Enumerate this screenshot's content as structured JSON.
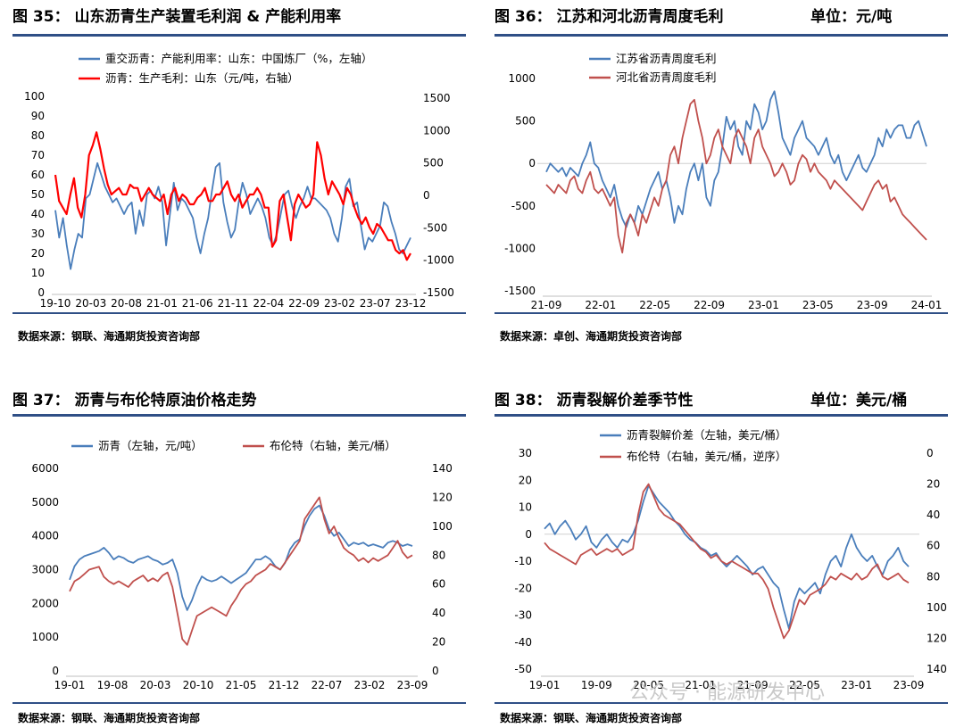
{
  "colors": {
    "blue": "#4a7ebb",
    "red": "#c0504d",
    "red_bright": "#ff0000",
    "rule": "#2f4f86",
    "gridline": "#d9d9d9"
  },
  "watermark": "公众号 · 能源研发中心",
  "charts": [
    {
      "title": "图 35：   山东沥青生产装置毛利润 & 产能利用率",
      "unit": "",
      "source": "数据来源：钢联、海通期货投资咨询部",
      "chart_data": {
        "type": "line",
        "legend_position": "top",
        "x_ticks": [
          "19-10",
          "20-03",
          "20-08",
          "21-01",
          "21-06",
          "21-11",
          "22-04",
          "22-09",
          "23-02",
          "23-07",
          "23-12"
        ],
        "yleft_ticks": [
          "100",
          "90",
          "80",
          "70",
          "60",
          "50",
          "40",
          "30",
          "20",
          "10",
          "0"
        ],
        "yleft_range": [
          0,
          100
        ],
        "yright_ticks": [
          "1500",
          "1000",
          "500",
          "0",
          "-500",
          "-1000",
          "-1500"
        ],
        "yright_range": [
          -1500,
          1500
        ],
        "series": [
          {
            "name": "重交沥青：产能利用率：山东：中国炼厂（%，左轴）",
            "axis": "left",
            "color": "#4a7ebb",
            "values": [
              42,
              28,
              38,
              24,
              12,
              22,
              30,
              28,
              48,
              50,
              58,
              66,
              60,
              54,
              50,
              46,
              48,
              44,
              40,
              44,
              46,
              30,
              42,
              34,
              50,
              52,
              48,
              54,
              46,
              24,
              40,
              56,
              42,
              48,
              46,
              42,
              38,
              28,
              20,
              30,
              38,
              52,
              64,
              66,
              46,
              36,
              28,
              32,
              46,
              56,
              50,
              40,
              44,
              48,
              44,
              38,
              28,
              24,
              30,
              40,
              50,
              52,
              44,
              38,
              44,
              48,
              54,
              48,
              48,
              46,
              44,
              42,
              38,
              30,
              26,
              38,
              54,
              58,
              44,
              46,
              34,
              22,
              28,
              26,
              30,
              34,
              46,
              44,
              36,
              30,
              22,
              20,
              24,
              28
            ]
          },
          {
            "name": "沥青：生产毛利：山东（元/吨，右轴）",
            "axis": "right",
            "color": "#ff0000",
            "values": [
              300,
              -100,
              -200,
              -300,
              0,
              250,
              -200,
              -350,
              0,
              600,
              750,
              950,
              700,
              400,
              150,
              0,
              50,
              100,
              0,
              0,
              150,
              100,
              100,
              -100,
              0,
              100,
              0,
              -50,
              -100,
              0,
              -300,
              0,
              100,
              -100,
              0,
              -50,
              -150,
              -150,
              -50,
              0,
              100,
              -100,
              -100,
              0,
              0,
              100,
              200,
              0,
              -100,
              0,
              -200,
              -100,
              0,
              0,
              100,
              0,
              -200,
              -200,
              -800,
              -700,
              -100,
              0,
              -350,
              -700,
              -150,
              0,
              -100,
              -200,
              -150,
              0,
              800,
              600,
              250,
              0,
              200,
              100,
              0,
              -150,
              100,
              0,
              -200,
              -350,
              -450,
              -350,
              -500,
              -600,
              -450,
              -500,
              -600,
              -700,
              -700,
              -850,
              -900,
              -850,
              -1000,
              -900
            ]
          }
        ]
      }
    },
    {
      "title": "图 36：   江苏和河北沥青周度毛利",
      "unit": "单位：元/吨",
      "source": "数据来源：卓创、海通期货投资咨询部",
      "chart_data": {
        "type": "line",
        "legend_position": "top-left",
        "x_ticks": [
          "21-09",
          "22-01",
          "22-05",
          "22-09",
          "23-01",
          "23-05",
          "23-09",
          "24-01"
        ],
        "y_ticks": [
          "1000",
          "500",
          "0",
          "-500",
          "-1000",
          "-1500"
        ],
        "y_range": [
          -1500,
          1000
        ],
        "series": [
          {
            "name": "江苏省沥青周度毛利",
            "color": "#4a7ebb",
            "values": [
              -100,
              0,
              -50,
              -100,
              -50,
              -150,
              -50,
              -100,
              -150,
              0,
              100,
              250,
              0,
              -50,
              -200,
              -300,
              -400,
              -250,
              -500,
              -650,
              -750,
              -600,
              -700,
              -500,
              -600,
              -450,
              -300,
              -200,
              -100,
              -300,
              -200,
              -400,
              -700,
              -500,
              -600,
              -300,
              -100,
              0,
              -200,
              0,
              -400,
              -500,
              -200,
              -100,
              200,
              550,
              400,
              500,
              200,
              100,
              500,
              400,
              700,
              600,
              400,
              500,
              750,
              850,
              600,
              300,
              200,
              100,
              300,
              400,
              500,
              300,
              250,
              200,
              100,
              200,
              300,
              100,
              0,
              100,
              -100,
              -200,
              -100,
              0,
              100,
              -50,
              -100,
              0,
              100,
              300,
              200,
              400,
              300,
              400,
              450,
              450,
              300,
              300,
              450,
              500,
              350,
              200
            ]
          },
          {
            "name": "河北省沥青周度毛利",
            "color": "#c0504d",
            "values": [
              -250,
              -300,
              -350,
              -250,
              -300,
              -350,
              -200,
              -150,
              -300,
              -350,
              -200,
              -100,
              -300,
              -350,
              -300,
              -400,
              -500,
              -400,
              -850,
              -1050,
              -700,
              -600,
              -700,
              -850,
              -600,
              -700,
              -550,
              -400,
              -500,
              -300,
              -200,
              100,
              200,
              0,
              300,
              500,
              700,
              750,
              500,
              300,
              0,
              100,
              300,
              400,
              200,
              100,
              0,
              300,
              400,
              300,
              200,
              0,
              300,
              400,
              200,
              100,
              0,
              -150,
              -100,
              0,
              -100,
              -250,
              -200,
              0,
              100,
              50,
              -100,
              0,
              -100,
              -150,
              -200,
              -300,
              -200,
              -250,
              -300,
              -350,
              -400,
              -450,
              -500,
              -550,
              -450,
              -350,
              -250,
              -200,
              -300,
              -250,
              -450,
              -400,
              -500,
              -600,
              -650,
              -700,
              -750,
              -800,
              -850,
              -900
            ]
          }
        ]
      }
    },
    {
      "title": "图 37：   沥青与布伦特原油价格走势",
      "unit": "",
      "source": "数据来源：钢联、海通期货投资咨询部",
      "chart_data": {
        "type": "line",
        "legend_position": "top",
        "x_ticks": [
          "19-01",
          "19-08",
          "20-03",
          "20-10",
          "21-05",
          "21-12",
          "22-07",
          "23-02",
          "23-09"
        ],
        "yleft_ticks": [
          "6000",
          "5000",
          "4000",
          "3000",
          "2000",
          "1000",
          "0"
        ],
        "yleft_range": [
          0,
          6000
        ],
        "yright_ticks": [
          "140",
          "120",
          "100",
          "80",
          "60",
          "40",
          "20",
          "0"
        ],
        "yright_range": [
          0,
          140
        ],
        "series": [
          {
            "name": "沥青（左轴，元/吨）",
            "axis": "left",
            "color": "#4a7ebb",
            "values": [
              2700,
              3100,
              3300,
              3400,
              3450,
              3500,
              3550,
              3650,
              3500,
              3300,
              3400,
              3350,
              3250,
              3200,
              3300,
              3350,
              3400,
              3300,
              3250,
              3150,
              3200,
              3300,
              2900,
              2200,
              1800,
              2100,
              2500,
              2800,
              2700,
              2650,
              2700,
              2800,
              2700,
              2600,
              2700,
              2800,
              2900,
              3100,
              3300,
              3300,
              3400,
              3300,
              3100,
              3000,
              3200,
              3600,
              3800,
              3900,
              4300,
              4600,
              4800,
              4900,
              4600,
              4200,
              4000,
              4100,
              3900,
              3700,
              3800,
              3750,
              3800,
              3700,
              3750,
              3700,
              3650,
              3800,
              3850,
              3800,
              3700,
              3750,
              3700
            ]
          },
          {
            "name": "布伦特（右轴，美元/桶）",
            "axis": "right",
            "color": "#c0504d",
            "values": [
              55,
              62,
              64,
              67,
              70,
              71,
              72,
              65,
              62,
              60,
              62,
              60,
              58,
              62,
              64,
              66,
              62,
              64,
              62,
              66,
              68,
              58,
              40,
              22,
              18,
              28,
              38,
              40,
              42,
              44,
              42,
              40,
              38,
              45,
              50,
              56,
              60,
              62,
              66,
              68,
              70,
              74,
              72,
              70,
              75,
              80,
              85,
              90,
              105,
              110,
              115,
              120,
              105,
              95,
              100,
              92,
              85,
              82,
              80,
              76,
              78,
              75,
              78,
              76,
              78,
              80,
              85,
              90,
              82,
              78,
              80
            ]
          }
        ]
      }
    },
    {
      "title": "图 38：   沥青裂解价差季节性",
      "unit": "单位：美元/桶",
      "source": "数据来源：钢联、海通期货投资咨询部",
      "chart_data": {
        "type": "line",
        "legend_position": "top",
        "x_ticks": [
          "19-01",
          "19-09",
          "20-05",
          "21-01",
          "21-09",
          "22-05",
          "23-01",
          "23-09"
        ],
        "yleft_ticks": [
          "30",
          "20",
          "10",
          "0",
          "-10",
          "-20",
          "-30",
          "-40",
          "-50"
        ],
        "yleft_range": [
          -50,
          30
        ],
        "yright_ticks": [
          "0",
          "20",
          "40",
          "60",
          "80",
          "100",
          "120",
          "140"
        ],
        "yright_range": [
          0,
          140
        ],
        "yright_inverted": true,
        "series": [
          {
            "name": "沥青裂解价差（左轴，美元/桶）",
            "axis": "left",
            "color": "#4a7ebb",
            "values": [
              2,
              4,
              0,
              3,
              5,
              2,
              -2,
              0,
              3,
              -3,
              -5,
              -2,
              0,
              -3,
              -5,
              -2,
              -3,
              0,
              5,
              12,
              18,
              15,
              12,
              10,
              8,
              5,
              3,
              0,
              -2,
              -3,
              -5,
              -6,
              -8,
              -7,
              -10,
              -12,
              -10,
              -8,
              -10,
              -12,
              -15,
              -13,
              -12,
              -15,
              -18,
              -20,
              -28,
              -35,
              -25,
              -20,
              -22,
              -20,
              -18,
              -22,
              -15,
              -10,
              -8,
              -12,
              -5,
              0,
              -5,
              -8,
              -10,
              -8,
              -12,
              -15,
              -10,
              -8,
              -5,
              -10,
              -12
            ]
          },
          {
            "name": "布伦特（右轴，美元/桶，逆序）",
            "axis": "right",
            "color": "#c0504d",
            "values": [
              58,
              62,
              64,
              66,
              68,
              70,
              72,
              66,
              64,
              62,
              66,
              64,
              62,
              64,
              62,
              66,
              64,
              62,
              40,
              25,
              20,
              28,
              36,
              40,
              42,
              44,
              46,
              50,
              54,
              58,
              62,
              64,
              68,
              66,
              70,
              72,
              70,
              72,
              74,
              76,
              78,
              78,
              82,
              88,
              100,
              110,
              120,
              115,
              105,
              95,
              98,
              92,
              90,
              88,
              85,
              80,
              82,
              78,
              80,
              82,
              78,
              82,
              80,
              75,
              72,
              80,
              82,
              80,
              78,
              82,
              84
            ]
          }
        ]
      }
    }
  ]
}
